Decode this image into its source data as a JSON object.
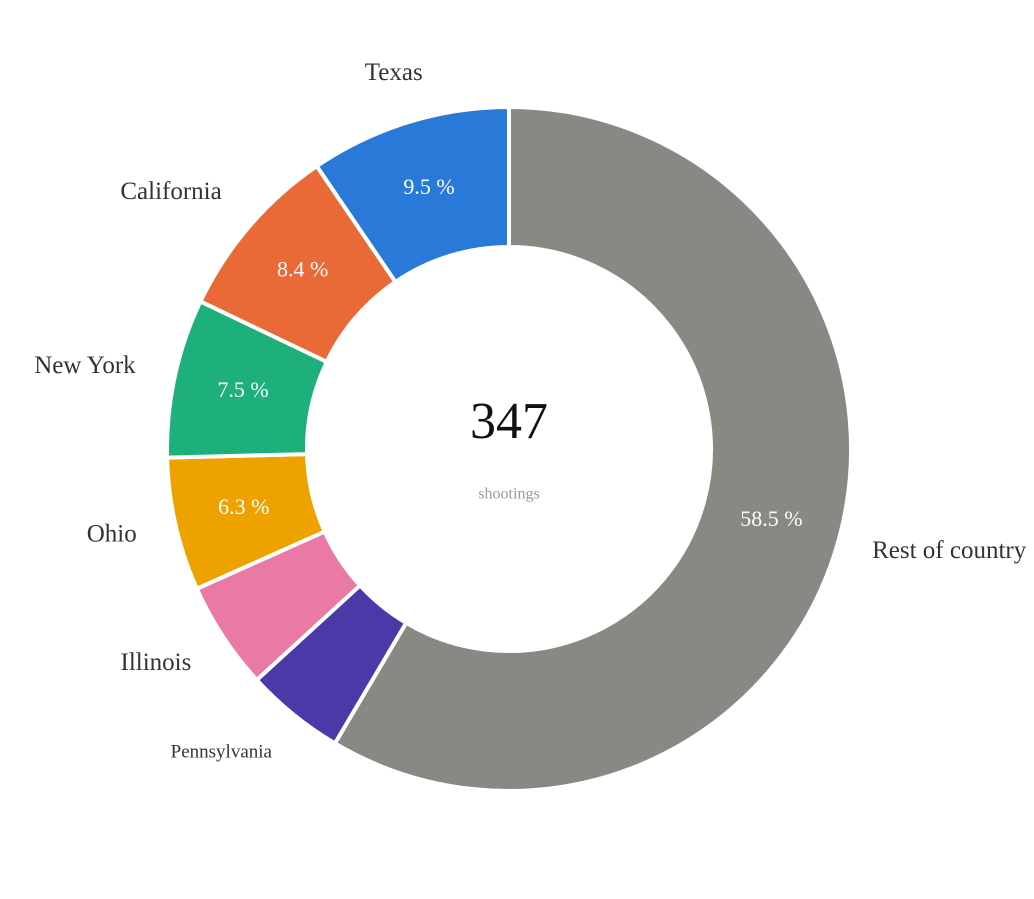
{
  "chart_data": {
    "type": "donut",
    "categories": [
      "Texas",
      "California",
      "New York",
      "Ohio",
      "Illinois",
      "Pennsylvania",
      "Rest of country"
    ],
    "values": [
      9.5,
      8.4,
      7.5,
      6.3,
      5.1,
      4.7,
      58.5
    ],
    "value_labels": [
      "9.5 %",
      "8.4 %",
      "7.5 %",
      "6.3 %",
      null,
      null,
      "58.5 %"
    ],
    "colors": [
      "#2979d8",
      "#ea6a37",
      "#1db07a",
      "#eda200",
      "#e87aa4",
      "#4a3aa8",
      "#898883"
    ],
    "total": 347,
    "total_label": "shootings"
  }
}
